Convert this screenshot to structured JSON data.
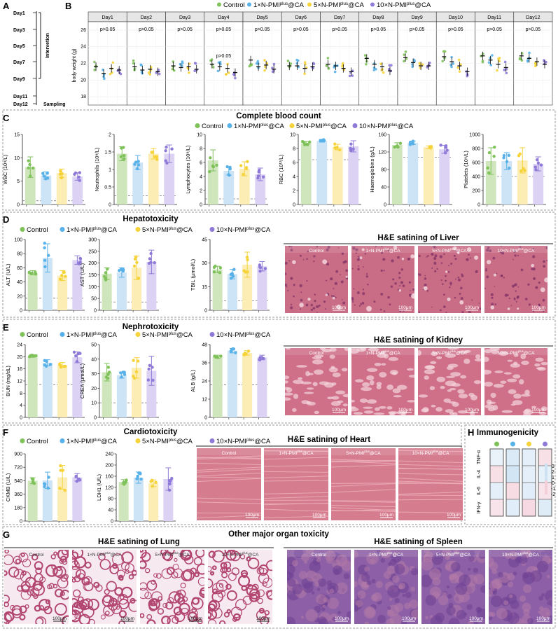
{
  "colors": {
    "control": "#7fc25a",
    "n1": "#58b1e8",
    "n5": "#f6d33a",
    "n10": "#8f7ad8",
    "control_bar": "#cfe6bd",
    "n1_bar": "#cde4f6",
    "n5_bar": "#fbedb3",
    "n10_bar": "#dcd2f4",
    "tissue": "#d98a9c",
    "dash": "#777777"
  },
  "panels": {
    "A": "A",
    "B": "B",
    "C": "C",
    "D": "D",
    "E": "E",
    "F": "F",
    "G": "G",
    "H": "H"
  },
  "groups": [
    "Control",
    "1×N-PMI",
    "5×N-PMI",
    "10×N-PMI"
  ],
  "group_suffix": {
    "sup": "plus",
    "tail": "@CA"
  },
  "timeline": {
    "days": [
      "Day1",
      "Day3",
      "Day5",
      "Day7",
      "Day9",
      "Day11",
      "Day12"
    ],
    "intervention": "Intervetion",
    "sampling": "Sampling"
  },
  "chart_data": [
    {
      "id": "B",
      "type": "scatter",
      "title": "Body weight",
      "ylabel": "body weight (g)",
      "ylim": [
        17,
        27
      ],
      "yticks": [
        18,
        20,
        22,
        24,
        26
      ],
      "days": [
        "Day1",
        "Day2",
        "Day3",
        "Day4",
        "Day5",
        "Day6",
        "Day7",
        "Day8",
        "Day9",
        "Day10",
        "Day11",
        "Day12"
      ],
      "pvalue": "p>0.05",
      "means": [
        [
          21.6,
          20.8,
          21.4,
          21.2
        ],
        [
          21.6,
          21.2,
          21.3,
          21.0
        ],
        [
          21.7,
          21.5,
          21.6,
          21.3
        ],
        [
          21.9,
          21.6,
          21.4,
          20.9
        ],
        [
          22.4,
          21.6,
          21.8,
          21.3
        ],
        [
          21.7,
          21.7,
          21.4,
          21.6
        ],
        [
          21.9,
          21.7,
          21.4,
          21.0
        ],
        [
          22.6,
          21.9,
          21.6,
          21.1
        ],
        [
          22.7,
          22.1,
          21.7,
          21.7
        ],
        [
          22.8,
          22.2,
          21.7,
          21.0
        ],
        [
          22.9,
          22.4,
          21.9,
          21.5
        ],
        [
          22.9,
          22.6,
          22.2,
          21.9
        ]
      ]
    },
    {
      "id": "C1",
      "type": "bar",
      "ylabel": "WBC (10⁹/L)",
      "ylim": [
        0,
        15
      ],
      "yticks": [
        0,
        5,
        10,
        15
      ],
      "values": [
        8.0,
        6.2,
        6.7,
        6.0
      ],
      "sd": [
        2.2,
        0.8,
        0.9,
        0.8
      ],
      "ref": 0.8
    },
    {
      "id": "C2",
      "type": "bar",
      "ylabel": "Neutrophils (10⁹/L)",
      "ylim": [
        0,
        2
      ],
      "yticks": [
        0.0,
        0.5,
        1.0,
        1.5,
        2.0
      ],
      "values": [
        1.45,
        1.2,
        1.45,
        1.45
      ],
      "sd": [
        0.2,
        0.2,
        0.15,
        0.25
      ],
      "ref": 0.25
    },
    {
      "id": "C3",
      "type": "bar",
      "ylabel": "Lymphocytes (10⁹/L)",
      "ylim": [
        0,
        10
      ],
      "yticks": [
        0,
        2,
        4,
        6,
        8,
        10
      ],
      "values": [
        6.3,
        4.8,
        5.1,
        4.3
      ],
      "sd": [
        1.5,
        0.6,
        1.0,
        0.9
      ],
      "ref": 0.8
    },
    {
      "id": "C4",
      "type": "bar",
      "ylabel": "RBC (10¹²/L)",
      "ylim": [
        0,
        10
      ],
      "yticks": [
        0,
        2,
        4,
        6,
        8,
        10
      ],
      "values": [
        8.7,
        9.1,
        8.2,
        8.3
      ],
      "sd": [
        0.3,
        0.2,
        0.4,
        0.8
      ],
      "ref": 6.4
    },
    {
      "id": "C5",
      "type": "bar",
      "ylabel": "Haemoglobins (g/L)",
      "ylim": [
        0,
        160
      ],
      "yticks": [
        0,
        40,
        80,
        120,
        160
      ],
      "values": [
        136,
        141,
        131,
        126
      ],
      "sd": [
        5,
        4,
        3,
        9
      ],
      "ref": 108
    },
    {
      "id": "C6",
      "type": "bar",
      "ylabel": "Platelets (10⁹/L)",
      "ylim": [
        0,
        1000
      ],
      "yticks": [
        0,
        200,
        400,
        600,
        800,
        1000
      ],
      "values": [
        620,
        620,
        630,
        580
      ],
      "sd": [
        190,
        120,
        180,
        100
      ],
      "ref": 400
    },
    {
      "id": "D1",
      "type": "bar",
      "ylabel": "ALT (U/L)",
      "ylim": [
        0,
        100
      ],
      "yticks": [
        0,
        20,
        40,
        60,
        80,
        100
      ],
      "values": [
        53,
        74,
        49,
        71
      ],
      "sd": [
        3,
        20,
        7,
        6
      ],
      "ref": 17
    },
    {
      "id": "D2",
      "type": "bar",
      "ylabel": "AST (U/L)",
      "ylim": [
        0,
        300
      ],
      "yticks": [
        0,
        50,
        100,
        150,
        200,
        250,
        300
      ],
      "values": [
        155,
        160,
        180,
        205
      ],
      "sd": [
        25,
        20,
        50,
        50
      ],
      "ref": 35
    },
    {
      "id": "D3",
      "type": "bar",
      "ylabel": "TBIL (μmol/L)",
      "ylim": [
        0,
        45
      ],
      "yticks": [
        0,
        15,
        30,
        45
      ],
      "values": [
        26,
        23,
        29,
        28
      ],
      "sd": [
        2,
        3,
        8,
        3
      ],
      "ref": 6
    },
    {
      "id": "E1",
      "type": "bar",
      "ylabel": "BUN (mg/dL)",
      "ylim": [
        0,
        24
      ],
      "yticks": [
        0,
        4,
        8,
        12,
        16,
        20,
        24
      ],
      "values": [
        20.2,
        18.0,
        17.3,
        19.8
      ],
      "sd": [
        0.4,
        1.0,
        0.8,
        1.8
      ],
      "ref": 10.8
    },
    {
      "id": "E2",
      "type": "bar",
      "ylabel": "CREA (μmol/L)",
      "ylim": [
        0,
        50
      ],
      "yticks": [
        0,
        10,
        20,
        30,
        40,
        50
      ],
      "values": [
        31,
        29,
        34,
        32
      ],
      "sd": [
        6,
        2,
        7,
        10
      ],
      "ref": 10
    },
    {
      "id": "E3",
      "type": "bar",
      "ylabel": "ALB (g/L)",
      "ylim": [
        0,
        48
      ],
      "yticks": [
        0,
        12,
        24,
        36,
        48
      ],
      "values": [
        40,
        44,
        42.5,
        39.5
      ],
      "sd": [
        1,
        1.5,
        1.5,
        1.5
      ],
      "ref": 21.5
    },
    {
      "id": "F1",
      "type": "bar",
      "ylabel": "CKMB (U/L)",
      "ylim": [
        0,
        900
      ],
      "yticks": [
        0,
        180,
        360,
        540,
        720,
        900
      ],
      "values": [
        540,
        545,
        585,
        585
      ],
      "sd": [
        40,
        110,
        160,
        50
      ],
      "ref": null
    },
    {
      "id": "F2",
      "type": "bar",
      "ylabel": "LDH1 (U/L)",
      "ylim": [
        0,
        240
      ],
      "yticks": [
        0,
        40,
        80,
        120,
        160,
        200,
        240
      ],
      "values": [
        140,
        155,
        135,
        150
      ],
      "sd": [
        8,
        20,
        12,
        40
      ],
      "ref": null
    },
    {
      "id": "H",
      "type": "heatmap",
      "title": "Immunogenicity",
      "rows": [
        "TNF-α",
        "IL-4",
        "IL-6",
        "IFN-γ"
      ],
      "cols": [
        "Control",
        "1×N-PMI",
        "5×N-PMI",
        "10×N-PMI"
      ],
      "values": [
        [
          0,
          0.5,
          0.2,
          -0.3
        ],
        [
          -0.3,
          0.8,
          0.2,
          0.1
        ],
        [
          0.2,
          -0.4,
          0.3,
          -0.2
        ],
        [
          -0.2,
          0.3,
          -0.5,
          0.4
        ]
      ],
      "scale": [
        3,
        2,
        1,
        0,
        -1,
        -2
      ]
    }
  ],
  "sections": {
    "C": "Complete blood count",
    "D": "Hepatotoxicity",
    "E": "Nephrotoxicity",
    "F": "Cardiotoxicity",
    "G": "Other major organ toxicity",
    "H": "Immunogenicity"
  },
  "histology": {
    "liver": "H&E satining of Liver",
    "kidney": "H&E satining of Kidney",
    "heart": "H&E satining of Heart",
    "lung": "H&E satining of Lung",
    "spleen": "H&E satining of Spleen",
    "scalebar": "100μm",
    "tile_labels": [
      "Control",
      "1×N-PMI",
      "5×N-PMI",
      "10×N-PMI"
    ],
    "tile_sup": "plus"
  },
  "b_extra_p": "p>0.05"
}
